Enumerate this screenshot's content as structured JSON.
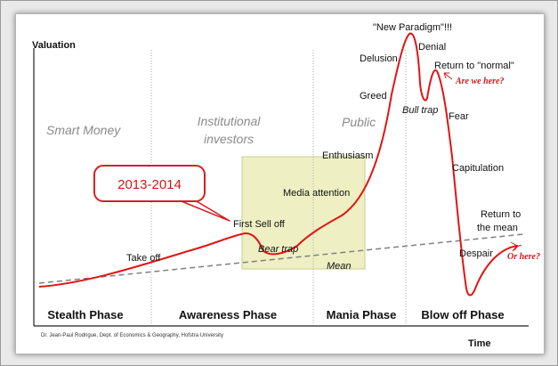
{
  "axes": {
    "y_label": "Valuation",
    "x_label": "Time"
  },
  "phases": [
    {
      "name": "Stealth Phase",
      "title": "Smart Money"
    },
    {
      "name": "Awareness Phase",
      "title": "Institutional investors"
    },
    {
      "name": "Mania Phase",
      "title": "Public"
    },
    {
      "name": "Blow off Phase",
      "title": ""
    }
  ],
  "awareness_title_lines": [
    "Institutional",
    "investors"
  ],
  "annotations": {
    "take_off": "Take off",
    "first_sell_off": "First Sell off",
    "bear_trap": "Bear trap",
    "media_attention": "Media attention",
    "enthusiasm": "Enthusiasm",
    "greed": "Greed",
    "delusion": "Delusion",
    "new_paradigm": "\"New Paradigm\"!!!",
    "denial": "Denial",
    "return_to_normal": "Return to \"normal\"",
    "bull_trap": "Bull trap",
    "fear": "Fear",
    "capitulation": "Capitulation",
    "return_to_mean_1": "Return to",
    "return_to_mean_2": "the mean",
    "despair": "Despair",
    "mean": "Mean"
  },
  "notes": {
    "are_we_here": "Are we here?",
    "or_here": "Or here?"
  },
  "callout": {
    "text": "2013-2014"
  },
  "credit": "Dr. Jean-Paul Rodrigue, Dept. of Economics & Geography, Hofstra University",
  "colors": {
    "curve": "#e01515",
    "mean_line": "#808080",
    "highlight_box": "#eef0c4",
    "callout_border": "#d42020"
  }
}
